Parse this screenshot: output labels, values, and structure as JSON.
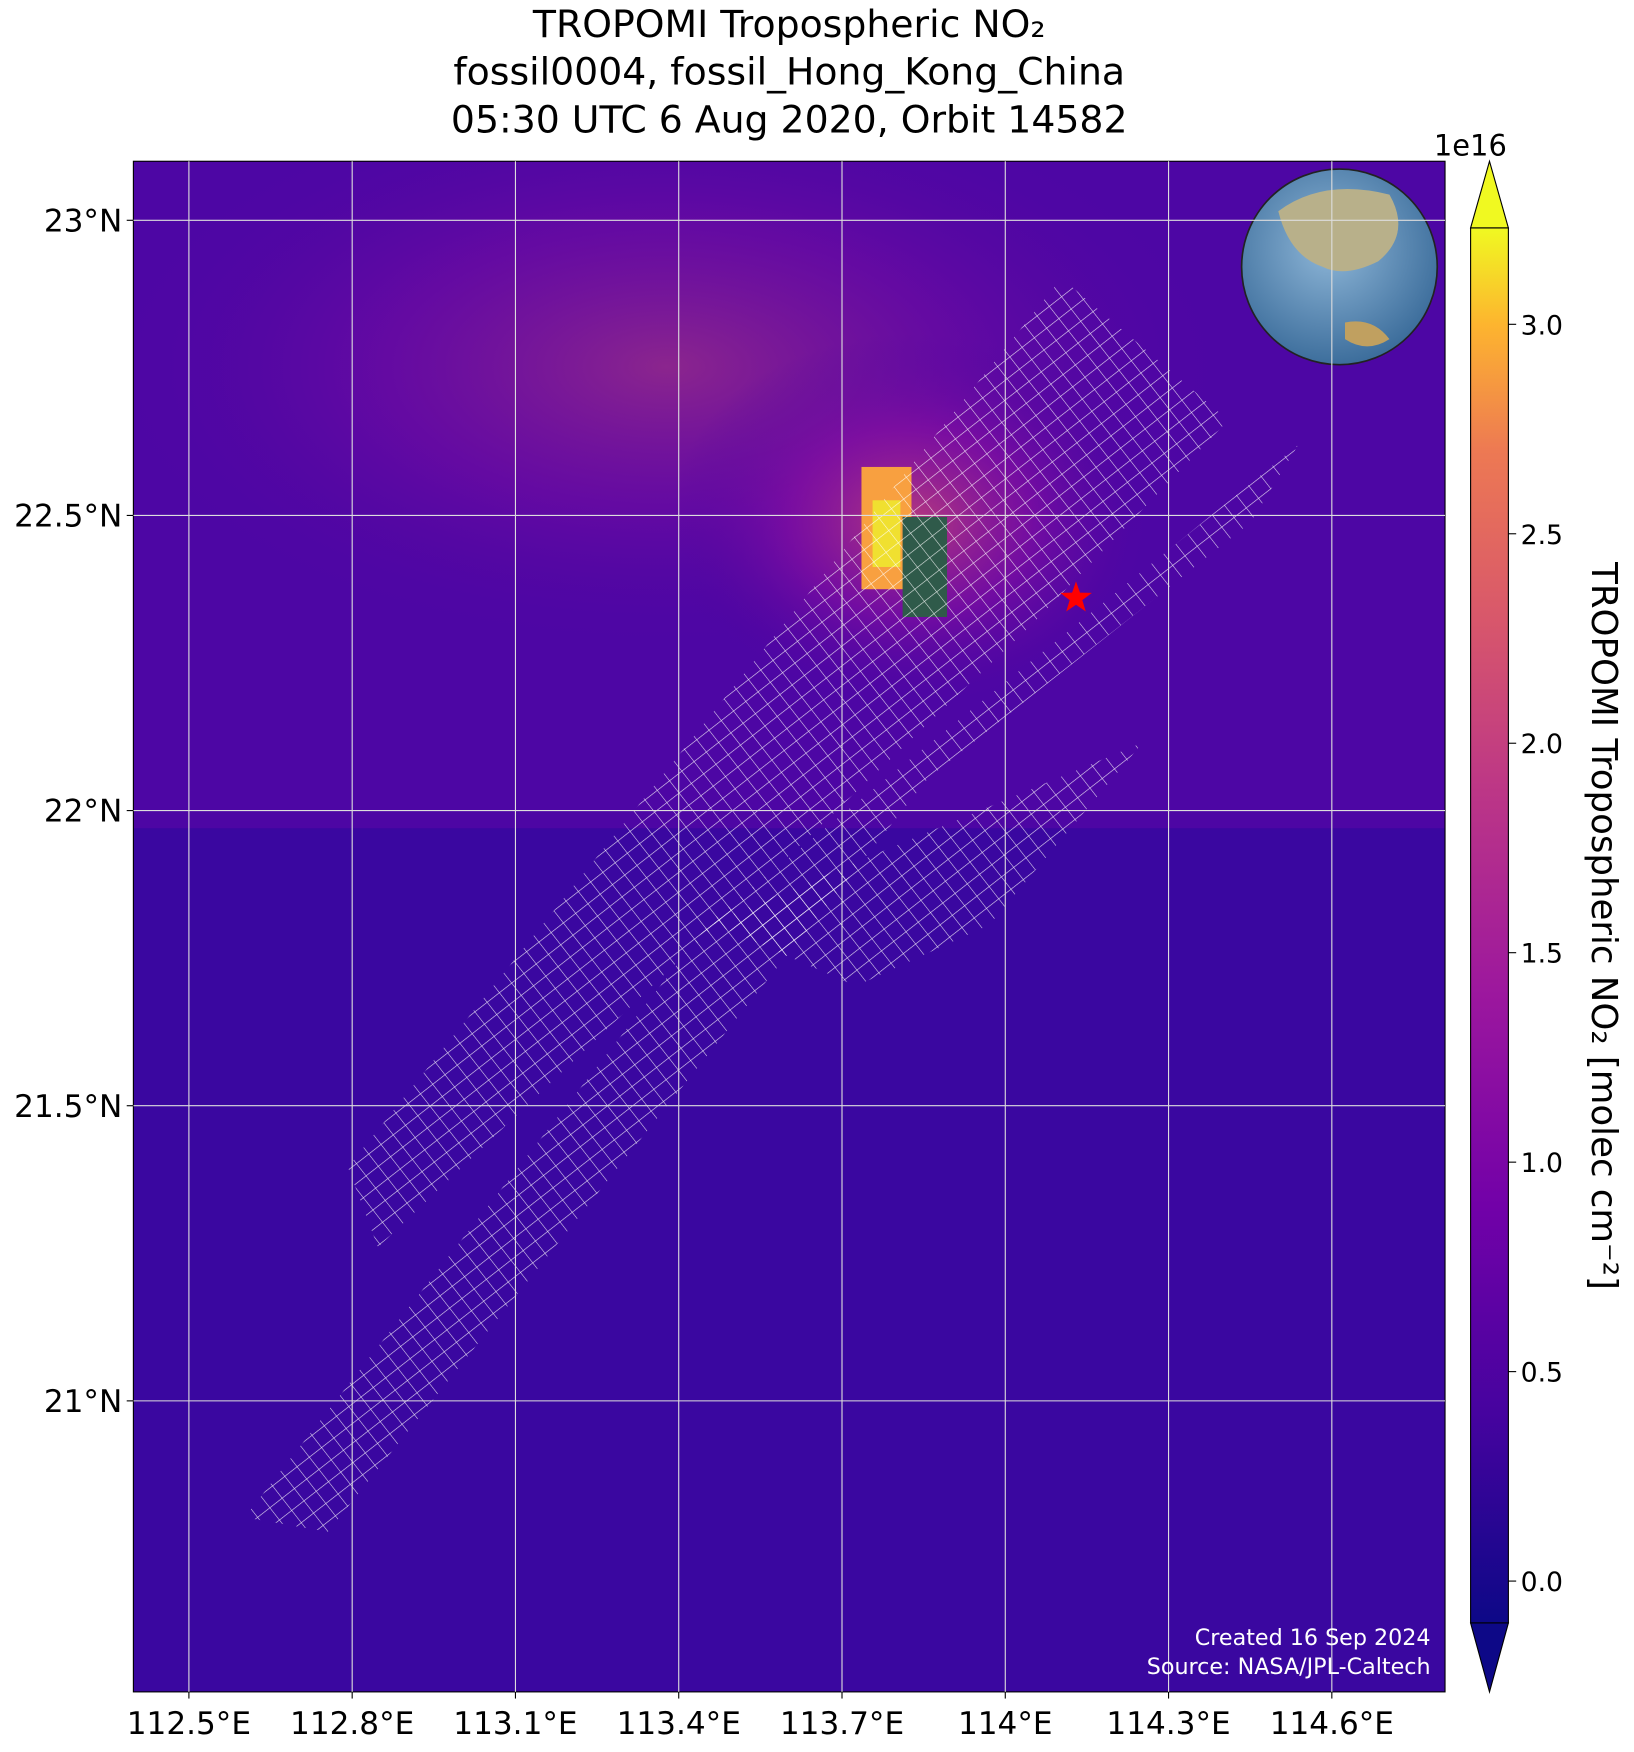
{
  "chart_data": {
    "type": "map",
    "title": [
      "TROPOMI Tropospheric NO₂",
      "fossil0004, fossil_Hong_Kong_China",
      "05:30 UTC 6 Aug 2020, Orbit 14582"
    ],
    "xlim": [
      112.398,
      114.808
    ],
    "xticks": [
      {
        "value": 112.5,
        "label": "112.5°E"
      },
      {
        "value": 112.8,
        "label": "112.8°E"
      },
      {
        "value": 113.1,
        "label": "113.1°E"
      },
      {
        "value": 113.4,
        "label": "113.4°E"
      },
      {
        "value": 113.7,
        "label": "113.7°E"
      },
      {
        "value": 114,
        "label": "114°E"
      },
      {
        "value": 114.3,
        "label": "114.3°E"
      },
      {
        "value": 114.6,
        "label": "114.6°E"
      }
    ],
    "ylim": [
      20.507,
      23.1
    ],
    "yticks": [
      {
        "value": 21,
        "label": "21°N"
      },
      {
        "value": 21.5,
        "label": "21.5°N"
      },
      {
        "value": 22,
        "label": "22°N"
      },
      {
        "value": 22.5,
        "label": "22.5°N"
      },
      {
        "value": 23,
        "label": "23°N"
      }
    ],
    "grid": true,
    "site": {
      "lon": 114.13,
      "lat": 22.36,
      "color": "#ff0000"
    },
    "colorbar": {
      "label": "TROPOMI Tropospheric NO₂ [molec cm⁻²]",
      "offset_label": "1e16",
      "lim": [
        -0.1,
        3.23
      ],
      "ticks": [
        {
          "value": 0,
          "label": "0.0"
        },
        {
          "value": 0.5,
          "label": "0.5"
        },
        {
          "value": 1,
          "label": "1.0"
        },
        {
          "value": 1.5,
          "label": "1.5"
        },
        {
          "value": 2,
          "label": "2.0"
        },
        {
          "value": 2.5,
          "label": "2.5"
        },
        {
          "value": 3,
          "label": "3.0"
        }
      ]
    },
    "annotations": [
      "Created 16 Sep 2024",
      "Source: NASA/JPL-Caltech"
    ]
  }
}
